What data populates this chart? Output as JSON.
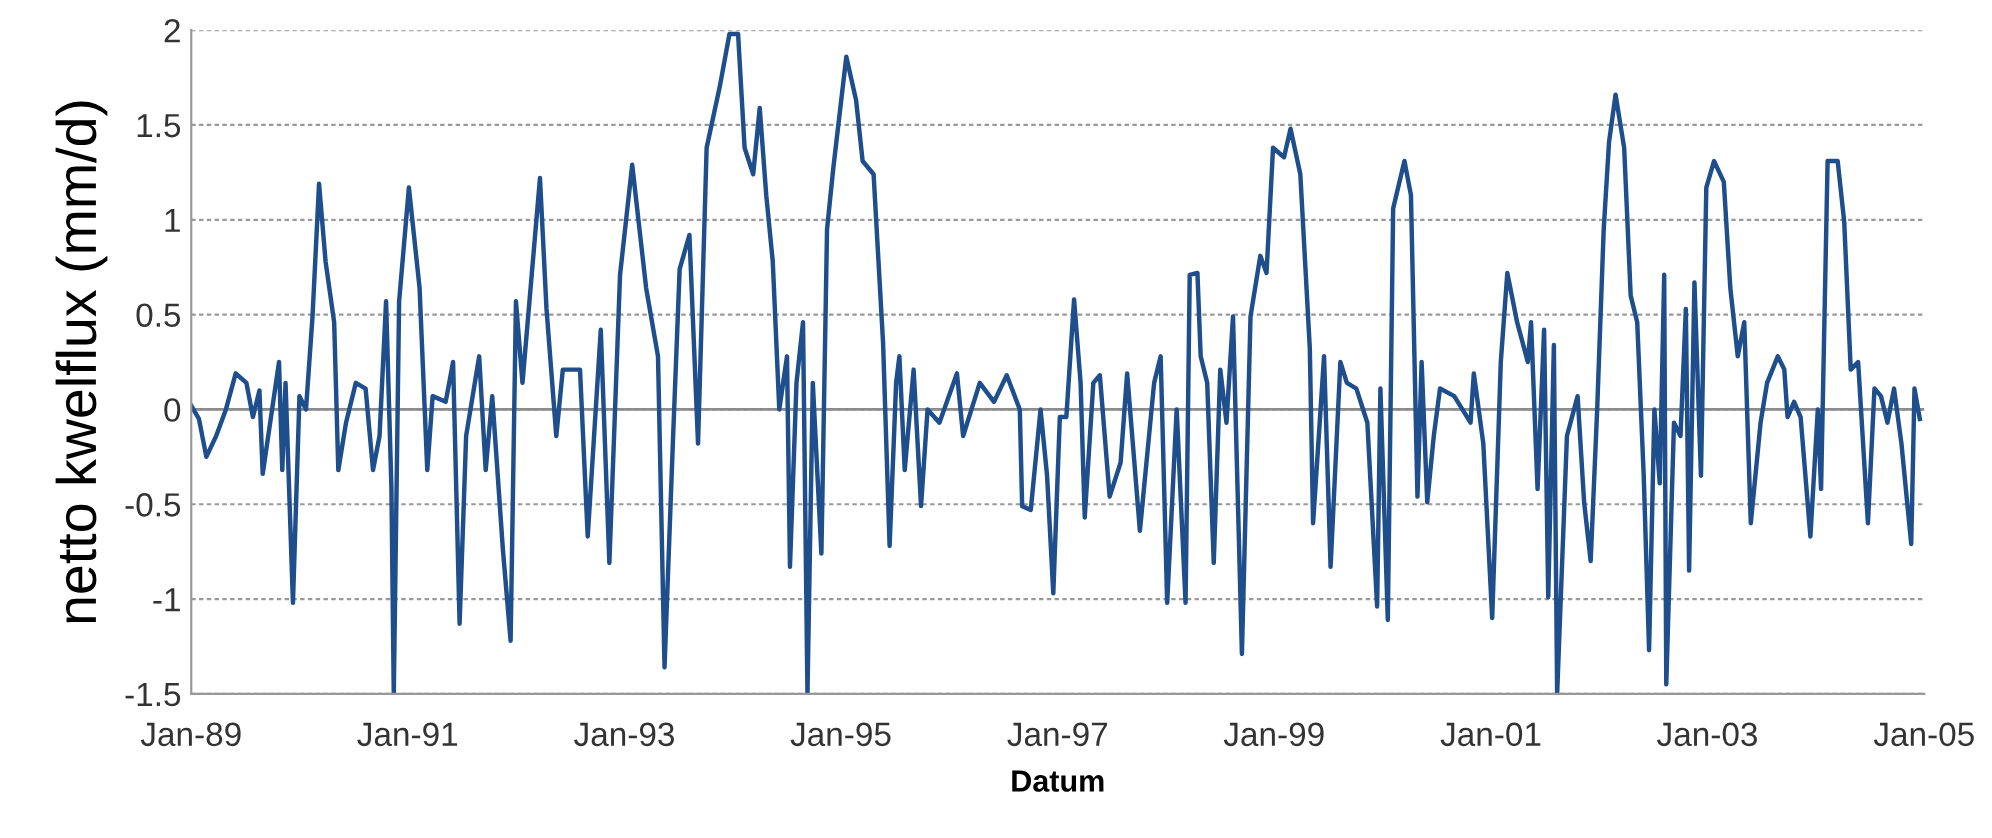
{
  "chart_data": {
    "type": "line",
    "xlabel": "Datum",
    "ylabel": "netto kwelflux (mm/d)",
    "xlim": [
      "1989-01-01",
      "2005-01-01"
    ],
    "xticks": [
      {
        "value": "1989-01-01",
        "label": "Jan-89"
      },
      {
        "value": "1991-01-01",
        "label": "Jan-91"
      },
      {
        "value": "1993-01-01",
        "label": "Jan-93"
      },
      {
        "value": "1995-01-01",
        "label": "Jan-95"
      },
      {
        "value": "1997-01-01",
        "label": "Jan-97"
      },
      {
        "value": "1999-01-01",
        "label": "Jan-99"
      },
      {
        "value": "2001-01-01",
        "label": "Jan-01"
      },
      {
        "value": "2003-01-01",
        "label": "Jan-03"
      },
      {
        "value": "2005-01-01",
        "label": "Jan-05"
      }
    ],
    "ylim": [
      -1.5,
      2
    ],
    "yticks": [
      -1.5,
      -1,
      -0.5,
      0,
      0.5,
      1,
      1.5,
      2
    ],
    "grid": "y",
    "marker": "none",
    "line_style": "solid",
    "ref_lines": [
      {
        "axis": "y",
        "value": 0,
        "color": "#8c8c8c",
        "line_style": "solid"
      }
    ],
    "series": [
      {
        "color": "#1f4e8c",
        "x": [
          "1989-01-01",
          "1989-01-27",
          "1989-02-21",
          "1989-03-26",
          "1989-04-28",
          "1989-05-31",
          "1989-07-06",
          "1989-07-28",
          "1989-08-19",
          "1989-08-30",
          "1989-10-24",
          "1989-11-04",
          "1989-11-15",
          "1989-12-10",
          "1990-01-01",
          "1990-01-23",
          "1990-02-14",
          "1990-03-08",
          "1990-03-30",
          "1990-04-28",
          "1990-05-12",
          "1990-06-07",
          "1990-07-10",
          "1990-08-12",
          "1990-09-06",
          "1990-09-28",
          "1990-10-20",
          "1990-11-07",
          "1990-11-15",
          "1990-12-03",
          "1991-01-05",
          "1991-02-10",
          "1991-03-08",
          "1991-03-26",
          "1991-05-09",
          "1991-06-03",
          "1991-06-25",
          "1991-07-17",
          "1991-08-30",
          "1991-09-21",
          "1991-10-13",
          "1991-11-18",
          "1991-12-14",
          "1992-01-01",
          "1992-01-23",
          "1992-03-22",
          "1992-04-13",
          "1992-05-16",
          "1992-06-07",
          "1992-07-10",
          "1992-08-04",
          "1992-08-30",
          "1992-10-13",
          "1992-11-11",
          "1992-12-17",
          "1993-01-27",
          "1993-03-15",
          "1993-04-24",
          "1993-05-16",
          "1993-06-14",
          "1993-07-06",
          "1993-08-08",
          "1993-09-06",
          "1993-10-05",
          "1993-11-18",
          "1993-12-21",
          "1994-01-19",
          "1994-02-10",
          "1994-03-11",
          "1994-04-02",
          "1994-04-24",
          "1994-05-16",
          "1994-06-07",
          "1994-07-03",
          "1994-07-13",
          "1994-08-04",
          "1994-08-26",
          "1994-09-10",
          "1994-09-28",
          "1994-10-27",
          "1994-11-15",
          "1994-12-06",
          "1995-01-19",
          "1995-02-21",
          "1995-03-15",
          "1995-04-21",
          "1995-05-23",
          "1995-06-14",
          "1995-07-06",
          "1995-07-17",
          "1995-08-04",
          "1995-09-03",
          "1995-09-28",
          "1995-10-20",
          "1995-11-29",
          "1996-01-27",
          "1996-02-17",
          "1996-04-13",
          "1996-05-31",
          "1996-07-13",
          "1996-08-26",
          "1996-09-03",
          "1996-10-02",
          "1996-11-04",
          "1996-11-26",
          "1996-12-17",
          "1997-01-08",
          "1997-01-30",
          "1997-02-25",
          "1997-03-19",
          "1997-04-02",
          "1997-05-01",
          "1997-05-23",
          "1997-06-25",
          "1997-08-01",
          "1997-08-23",
          "1997-10-05",
          "1997-11-22",
          "1997-12-14",
          "1998-01-05",
          "1998-02-06",
          "1998-03-08",
          "1998-03-22",
          "1998-04-17",
          "1998-04-28",
          "1998-05-20",
          "1998-06-11",
          "1998-07-03",
          "1998-07-24",
          "1998-08-15",
          "1998-09-14",
          "1998-10-13",
          "1998-11-15",
          "1998-12-06",
          "1998-12-28",
          "1999-02-03",
          "1999-02-25",
          "1999-03-30",
          "1999-05-01",
          "1999-05-12",
          "1999-06-18",
          "1999-07-10",
          "1999-08-12",
          "1999-09-03",
          "1999-10-05",
          "1999-11-11",
          "1999-12-14",
          "1999-12-25",
          "2000-01-19",
          "2000-02-06",
          "2000-03-15",
          "2000-04-06",
          "2000-04-28",
          "2000-05-12",
          "2000-05-31",
          "2000-06-22",
          "2000-07-13",
          "2000-08-30",
          "2000-10-24",
          "2000-11-04",
          "2000-12-06",
          "2001-01-05",
          "2001-02-03",
          "2001-02-25",
          "2001-03-30",
          "2001-05-05",
          "2001-05-16",
          "2001-06-07",
          "2001-06-29",
          "2001-07-13",
          "2001-08-01",
          "2001-08-12",
          "2001-09-14",
          "2001-10-20",
          "2001-11-11",
          "2001-12-03",
          "2001-12-25",
          "2002-01-16",
          "2002-02-03",
          "2002-02-25",
          "2002-03-26",
          "2002-04-17",
          "2002-05-09",
          "2002-05-31",
          "2002-06-18",
          "2002-07-06",
          "2002-07-24",
          "2002-08-08",
          "2002-08-15",
          "2002-09-10",
          "2002-10-02",
          "2002-10-20",
          "2002-10-31",
          "2002-11-18",
          "2002-12-10",
          "2002-12-28",
          "2003-01-23",
          "2003-02-25",
          "2003-03-19",
          "2003-04-13",
          "2003-05-05",
          "2003-05-27",
          "2003-06-29",
          "2003-07-21",
          "2003-08-26",
          "2003-09-17",
          "2003-09-28",
          "2003-10-20",
          "2003-11-11",
          "2003-12-14",
          "2004-01-08",
          "2004-01-19",
          "2004-02-10",
          "2004-03-15",
          "2004-04-06",
          "2004-04-28",
          "2004-05-23",
          "2004-06-25",
          "2004-07-17",
          "2004-08-08",
          "2004-08-30",
          "2004-09-21",
          "2004-10-16",
          "2004-11-18",
          "2004-11-29",
          "2004-12-17"
        ],
        "values": [
          0.02,
          -0.05,
          -0.25,
          -0.14,
          0.0,
          0.19,
          0.14,
          -0.04,
          0.1,
          -0.34,
          0.25,
          -0.32,
          0.14,
          -1.02,
          0.07,
          0.0,
          0.49,
          1.19,
          0.78,
          0.46,
          -0.32,
          -0.07,
          0.14,
          0.11,
          -0.32,
          -0.14,
          0.57,
          -0.41,
          -1.5,
          0.57,
          1.17,
          0.64,
          -0.32,
          0.07,
          0.04,
          0.25,
          -1.13,
          -0.14,
          0.28,
          -0.32,
          0.07,
          -0.74,
          -1.22,
          0.57,
          0.14,
          1.22,
          0.53,
          -0.14,
          0.21,
          0.21,
          0.21,
          -0.67,
          0.42,
          -0.81,
          0.71,
          1.29,
          0.64,
          0.28,
          -1.36,
          -0.14,
          0.74,
          0.92,
          -0.18,
          1.38,
          1.7,
          1.98,
          1.98,
          1.38,
          1.24,
          1.59,
          1.13,
          0.78,
          0.0,
          0.28,
          -0.83,
          0.14,
          0.46,
          -1.5,
          0.14,
          -0.76,
          0.95,
          1.27,
          1.86,
          1.63,
          1.31,
          1.24,
          0.35,
          -0.72,
          0.14,
          0.28,
          -0.32,
          0.21,
          -0.51,
          0.0,
          -0.07,
          0.19,
          -0.14,
          0.14,
          0.04,
          0.18,
          0.0,
          -0.51,
          -0.53,
          0.0,
          -0.35,
          -0.97,
          -0.04,
          -0.04,
          0.58,
          0.14,
          -0.57,
          0.14,
          0.18,
          -0.46,
          -0.28,
          0.19,
          -0.64,
          0.14,
          0.28,
          -1.02,
          0.0,
          -1.02,
          0.71,
          0.72,
          0.28,
          0.14,
          -0.81,
          0.21,
          -0.07,
          0.49,
          -1.29,
          0.49,
          0.81,
          0.72,
          1.38,
          1.33,
          1.48,
          1.24,
          0.32,
          -0.6,
          0.28,
          -0.83,
          0.25,
          0.14,
          0.11,
          -0.07,
          -1.04,
          0.11,
          -1.11,
          1.06,
          1.31,
          1.13,
          -0.46,
          0.25,
          -0.49,
          -0.14,
          0.11,
          0.07,
          -0.07,
          0.19,
          -0.18,
          -1.1,
          0.25,
          0.72,
          0.46,
          0.25,
          0.46,
          -0.42,
          0.42,
          -0.99,
          0.34,
          -1.5,
          -0.14,
          0.07,
          -0.49,
          -0.8,
          0.0,
          0.95,
          1.41,
          1.66,
          1.38,
          0.6,
          0.46,
          -0.35,
          -1.27,
          0.0,
          -0.39,
          0.71,
          -1.45,
          -0.07,
          -0.14,
          0.53,
          -0.85,
          0.67,
          -0.35,
          1.17,
          1.31,
          1.2,
          0.64,
          0.28,
          0.46,
          -0.6,
          -0.07,
          0.14,
          0.28,
          0.21,
          -0.04,
          0.04,
          -0.04,
          -0.67,
          0.0,
          -0.42,
          1.31,
          1.31,
          0.99,
          0.21,
          0.25,
          -0.6,
          0.11,
          0.07,
          -0.07,
          0.11,
          -0.18,
          -0.71,
          0.11,
          -0.05
        ]
      }
    ]
  }
}
